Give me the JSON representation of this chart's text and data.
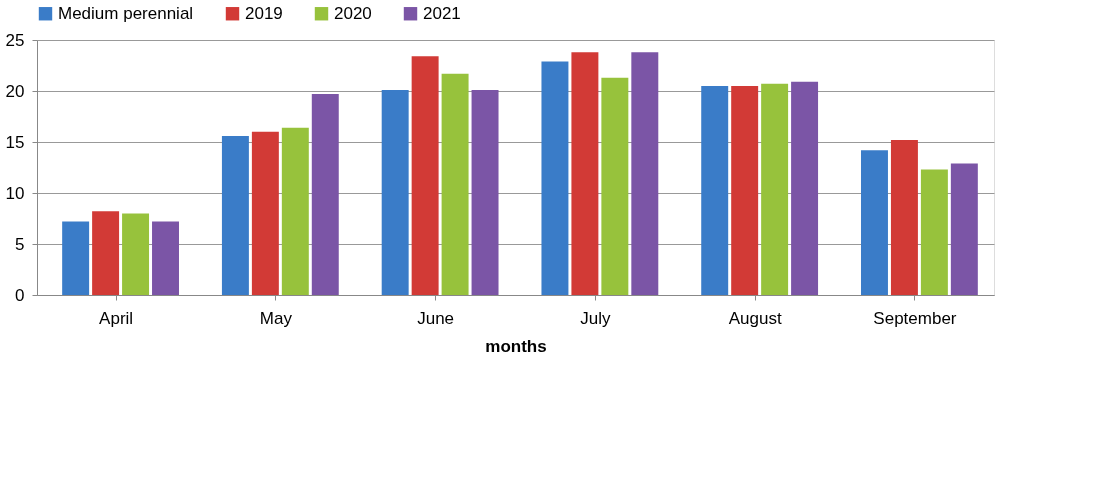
{
  "chart_data": {
    "type": "bar",
    "xlabel": "months",
    "categories": [
      "April",
      "May",
      "June",
      "July",
      "August",
      "September"
    ],
    "series": [
      {
        "name": "Medium perennial",
        "color": "#3a7cc8",
        "values": [
          7.2,
          15.6,
          20.1,
          22.9,
          20.5,
          14.2
        ]
      },
      {
        "name": "2019",
        "color": "#d23a36",
        "values": [
          8.2,
          16.0,
          23.4,
          23.8,
          20.5,
          15.2
        ]
      },
      {
        "name": "2020",
        "color": "#97c23c",
        "values": [
          8.0,
          16.4,
          21.7,
          21.3,
          20.7,
          12.3
        ]
      },
      {
        "name": "2021",
        "color": "#7b55a6",
        "values": [
          7.2,
          19.7,
          20.1,
          23.8,
          20.9,
          12.9
        ]
      }
    ],
    "ylim": [
      0,
      25
    ],
    "yticks": [
      0,
      5,
      10,
      15,
      20,
      25
    ],
    "grid": "y",
    "legend": "top"
  }
}
